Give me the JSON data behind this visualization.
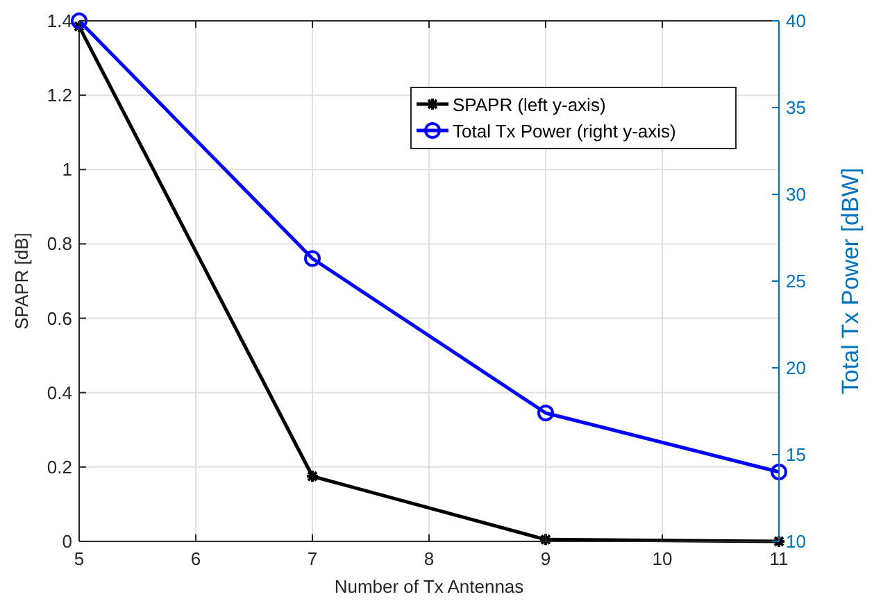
{
  "chart_data": {
    "type": "line",
    "xlabel": "Number of Tx Antennas",
    "ylabel": "SPAPR [dB]",
    "y2label": "Total Tx Power [dBW]",
    "x": [
      5,
      7,
      9,
      11
    ],
    "xlim": [
      5,
      11
    ],
    "xticks": [
      5,
      6,
      7,
      8,
      9,
      10,
      11
    ],
    "ylim": [
      0,
      1.4
    ],
    "yticks": [
      0,
      {
        "value": 0.2,
        "label": "0.2"
      },
      {
        "value": 0.4,
        "label": "0.4"
      },
      {
        "value": 0.6,
        "label": "0.6"
      },
      {
        "value": 0.8,
        "label": "0.8"
      },
      1,
      {
        "value": 1.2,
        "label": "1.2"
      },
      {
        "value": 1.4,
        "label": "1.4"
      }
    ],
    "y2lim": [
      10,
      40
    ],
    "y2ticks": [
      10,
      15,
      20,
      25,
      30,
      35,
      40
    ],
    "grid": true,
    "legend": "top right",
    "line_style": "solid",
    "series": [
      {
        "name": "SPAPR (left y-axis)",
        "color": "#000000",
        "marker": "cross",
        "values": [
          1.385,
          0.175,
          0.005,
          0
        ]
      },
      {
        "name": "Total Tx Power (right y-axis)",
        "color": "#0000ff",
        "marker": "circle",
        "axis": "y2",
        "values": [
          40,
          26.3,
          17.4,
          14.0
        ]
      }
    ]
  }
}
